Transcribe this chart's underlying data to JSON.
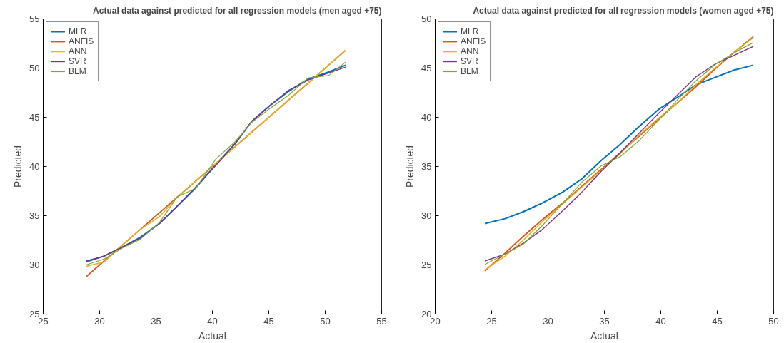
{
  "chart_data": [
    {
      "type": "line",
      "title": "Actual data against predicted for all regression models (men aged +75)",
      "xlabel": "Actual",
      "ylabel": "Predicted",
      "x": [
        28.8,
        30.4,
        32.0,
        33.6,
        35.3,
        36.9,
        38.5,
        40.3,
        42.0,
        43.5,
        45.1,
        46.7,
        48.5,
        50.3,
        51.8
      ],
      "series": [
        {
          "name": "MLR",
          "color": "#0072bd",
          "values": [
            30.3,
            30.9,
            31.8,
            32.8,
            34.2,
            36.0,
            37.8,
            40.2,
            42.3,
            44.6,
            46.2,
            47.6,
            48.9,
            49.6,
            50.3
          ]
        },
        {
          "name": "ANFIS",
          "color": "#d95319",
          "values": [
            28.8,
            30.4,
            32.0,
            33.6,
            35.3,
            36.9,
            38.5,
            40.3,
            42.0,
            43.5,
            45.1,
            46.7,
            48.5,
            50.3,
            51.8
          ]
        },
        {
          "name": "ANN",
          "color": "#edb120",
          "values": [
            29.85,
            30.3,
            32.0,
            33.6,
            34.9,
            36.9,
            38.5,
            40.3,
            42.0,
            43.5,
            45.1,
            46.7,
            48.5,
            50.3,
            51.8
          ]
        },
        {
          "name": "SVR",
          "color": "#7e2f8e",
          "values": [
            30.4,
            30.9,
            31.8,
            32.7,
            34.2,
            36.0,
            37.9,
            40.1,
            42.3,
            44.6,
            46.2,
            47.7,
            48.8,
            49.5,
            50.1
          ]
        },
        {
          "name": "BLM",
          "color": "#77ac30",
          "values": [
            30.0,
            30.6,
            31.7,
            32.6,
            34.3,
            36.95,
            37.75,
            40.75,
            42.5,
            44.5,
            45.9,
            47.2,
            49.0,
            49.25,
            50.6
          ]
        }
      ],
      "xlim": [
        25,
        55
      ],
      "xticks": [
        25,
        30,
        35,
        40,
        45,
        50,
        55
      ],
      "ylim": [
        25,
        55
      ],
      "yticks": [
        25,
        30,
        35,
        40,
        45,
        50,
        55
      ],
      "legend": "top left",
      "grid": false
    },
    {
      "type": "line",
      "title": "Actual data against predicted for all regression models (women aged +75)",
      "xlabel": "Actual",
      "ylabel": "Predicted",
      "x": [
        24.4,
        26.2,
        27.8,
        29.5,
        31.3,
        33.0,
        34.7,
        36.4,
        38.1,
        39.8,
        41.5,
        43.1,
        44.8,
        46.5,
        48.2
      ],
      "series": [
        {
          "name": "MLR",
          "color": "#0072bd",
          "values": [
            29.2,
            29.7,
            30.4,
            31.3,
            32.4,
            33.75,
            35.6,
            37.25,
            39.1,
            40.8,
            42.05,
            43.3,
            44.05,
            44.8,
            45.3
          ]
        },
        {
          "name": "ANFIS",
          "color": "#d95319",
          "values": [
            24.4,
            26.2,
            27.9,
            29.6,
            31.3,
            33.0,
            34.7,
            36.4,
            38.1,
            39.8,
            41.5,
            43.1,
            44.9,
            46.6,
            48.2
          ]
        },
        {
          "name": "ANN",
          "color": "#edb120",
          "values": [
            24.5,
            25.9,
            27.5,
            29.4,
            31.2,
            32.9,
            34.6,
            36.3,
            38.2,
            39.9,
            41.5,
            43.3,
            45.0,
            46.6,
            48.1
          ]
        },
        {
          "name": "SVR",
          "color": "#7e2f8e",
          "values": [
            25.4,
            26.1,
            27.2,
            28.6,
            30.5,
            32.4,
            34.5,
            36.4,
            38.4,
            40.4,
            42.3,
            44.1,
            45.4,
            46.3,
            47.2
          ]
        },
        {
          "name": "BLM",
          "color": "#77ac30",
          "values": [
            25.05,
            26.1,
            27.1,
            29.0,
            31.25,
            33.4,
            35.05,
            36.0,
            37.65,
            39.7,
            41.8,
            43.7,
            45.35,
            46.55,
            47.6
          ]
        }
      ],
      "xlim": [
        20,
        50
      ],
      "xticks": [
        20,
        25,
        30,
        35,
        40,
        45,
        50
      ],
      "ylim": [
        20,
        50
      ],
      "yticks": [
        20,
        25,
        30,
        35,
        40,
        45,
        50
      ],
      "legend": "top left",
      "grid": false
    }
  ]
}
